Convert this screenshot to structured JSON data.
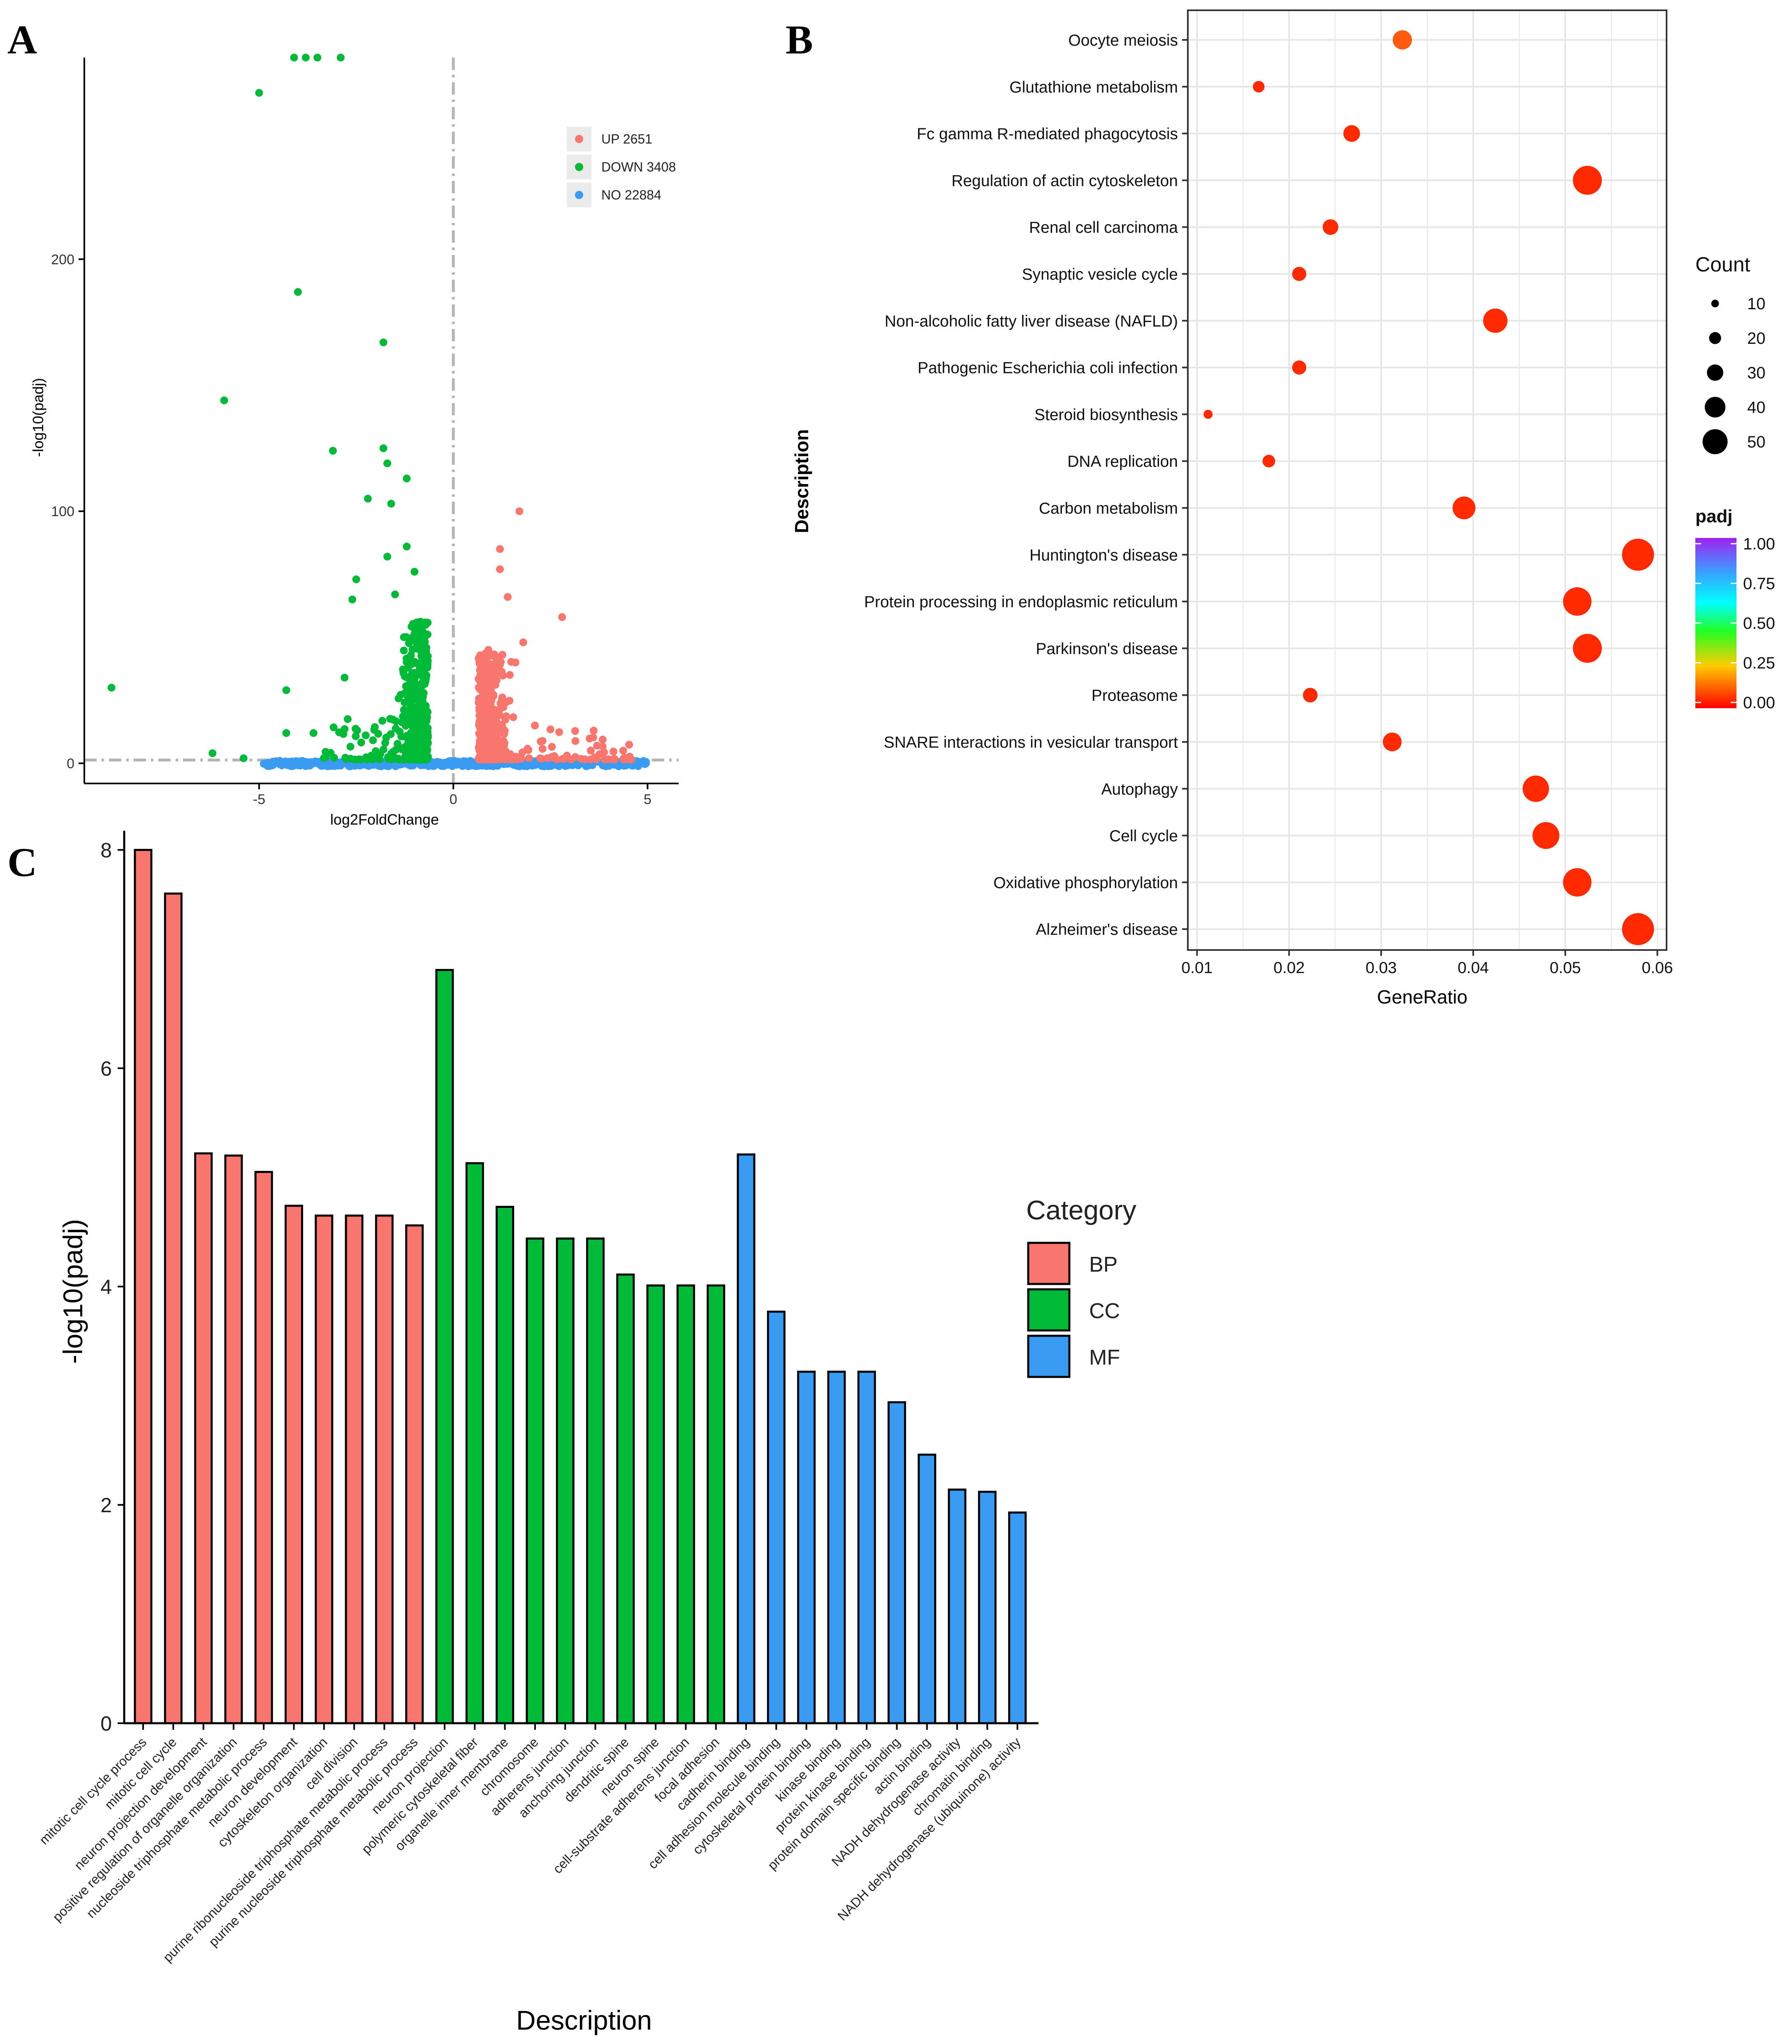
{
  "panels": {
    "a": "A",
    "b": "B",
    "c": "C"
  },
  "colors": {
    "up": "#F8766D",
    "down": "#00BA38",
    "no": "#3A9BF2",
    "bp": "#F8766D",
    "cc": "#00BA38",
    "mf": "#3A9BF2",
    "dot": "#FF2A00",
    "dot_warm": "#FF5A10"
  },
  "chart_data": [
    {
      "type": "scatter",
      "panel": "A",
      "title": "",
      "xlabel": "log2FoldChange",
      "ylabel": "-log10(padj)",
      "xlim": [
        -9.5,
        5.8
      ],
      "ylim": [
        -8,
        280
      ],
      "xticks": [
        "-5",
        "0",
        "5"
      ],
      "yticks": [
        "0",
        "100",
        "200"
      ],
      "thresholds": {
        "x": 0,
        "y": 1.3
      },
      "legend": [
        {
          "key": "up",
          "label": "UP 2651"
        },
        {
          "key": "down",
          "label": "DOWN 3408"
        },
        {
          "key": "no",
          "label": "NO 22884"
        }
      ],
      "series": [
        {
          "name": "DOWN",
          "points": [
            [
              -4.1,
              280
            ],
            [
              -3.8,
              280
            ],
            [
              -3.5,
              280
            ],
            [
              -2.9,
              280
            ],
            [
              -5.0,
              266
            ],
            [
              -4.0,
              187
            ],
            [
              -1.8,
              167
            ],
            [
              -5.9,
              144
            ],
            [
              -3.1,
              124
            ],
            [
              -1.8,
              125
            ],
            [
              -1.2,
              113
            ],
            [
              -1.7,
              119
            ],
            [
              -2.2,
              105
            ],
            [
              -1.6,
              103
            ],
            [
              -1.2,
              86
            ],
            [
              -2.5,
              73
            ],
            [
              -1.7,
              82
            ],
            [
              -2.6,
              65
            ],
            [
              -1.5,
              67
            ],
            [
              -1.0,
              76
            ],
            [
              -4.3,
              29
            ],
            [
              -8.8,
              30
            ],
            [
              -2.8,
              34
            ],
            [
              -4.3,
              12
            ],
            [
              -3.6,
              12
            ],
            [
              -6.2,
              4
            ],
            [
              -5.4,
              2
            ]
          ]
        },
        {
          "name": "UP",
          "points": [
            [
              1.7,
              100
            ],
            [
              1.2,
              85
            ],
            [
              1.2,
              77
            ],
            [
              1.4,
              66
            ],
            [
              2.8,
              58
            ],
            [
              1.8,
              48
            ],
            [
              2.1,
              15
            ],
            [
              3.7,
              7
            ],
            [
              0.9,
              45
            ],
            [
              1.6,
              40
            ]
          ]
        }
      ]
    },
    {
      "type": "bubble",
      "panel": "B",
      "xlabel": "GeneRatio",
      "ylabel": "Description",
      "xlim": [
        0.009,
        0.061
      ],
      "xticks": [
        "0.01",
        "0.02",
        "0.03",
        "0.04",
        "0.05",
        "0.06"
      ],
      "size_legend_title": "Count",
      "size_legend": [
        10,
        20,
        30,
        40,
        50
      ],
      "color_legend_title": "padj",
      "color_legend": [
        "1.00",
        "0.75",
        "0.50",
        "0.25",
        "0.00"
      ],
      "terms": [
        {
          "label": "Oocyte meiosis",
          "ratio": 0.0323,
          "count": 30,
          "padj": 0.12
        },
        {
          "label": "Glutathione metabolism",
          "ratio": 0.0167,
          "count": 15,
          "padj": 0.05
        },
        {
          "label": "Fc gamma R-mediated phagocytosis",
          "ratio": 0.0268,
          "count": 25,
          "padj": 0.05
        },
        {
          "label": "Regulation of actin cytoskeleton",
          "ratio": 0.0524,
          "count": 49,
          "padj": 0.0
        },
        {
          "label": "Renal cell carcinoma",
          "ratio": 0.0245,
          "count": 23,
          "padj": 0.03
        },
        {
          "label": "Synaptic vesicle cycle",
          "ratio": 0.0211,
          "count": 20,
          "padj": 0.01
        },
        {
          "label": "Non-alcoholic fatty liver disease (NAFLD)",
          "ratio": 0.0424,
          "count": 40,
          "padj": 0.0
        },
        {
          "label": "Pathogenic Escherichia coli infection",
          "ratio": 0.0211,
          "count": 20,
          "padj": 0.01
        },
        {
          "label": "Steroid biosynthesis",
          "ratio": 0.0112,
          "count": 10,
          "padj": 0.0
        },
        {
          "label": "DNA replication",
          "ratio": 0.0178,
          "count": 17,
          "padj": 0.01
        },
        {
          "label": "Carbon metabolism",
          "ratio": 0.039,
          "count": 37,
          "padj": 0.0
        },
        {
          "label": "Huntington's disease",
          "ratio": 0.0579,
          "count": 55,
          "padj": 0.0
        },
        {
          "label": "Protein processing in endoplasmic reticulum",
          "ratio": 0.0513,
          "count": 48,
          "padj": 0.0
        },
        {
          "label": "Parkinson's disease",
          "ratio": 0.0524,
          "count": 49,
          "padj": 0.0
        },
        {
          "label": "Proteasome",
          "ratio": 0.0223,
          "count": 21,
          "padj": 0.01
        },
        {
          "label": "SNARE interactions in vesicular transport",
          "ratio": 0.0312,
          "count": 29,
          "padj": 0.0
        },
        {
          "label": "Autophagy",
          "ratio": 0.0468,
          "count": 44,
          "padj": 0.0
        },
        {
          "label": "Cell cycle",
          "ratio": 0.0479,
          "count": 45,
          "padj": 0.0
        },
        {
          "label": "Oxidative phosphorylation",
          "ratio": 0.0513,
          "count": 48,
          "padj": 0.0
        },
        {
          "label": "Alzheimer's disease",
          "ratio": 0.0579,
          "count": 55,
          "padj": 0.0
        }
      ]
    },
    {
      "type": "bar",
      "panel": "C",
      "xlabel": "Description",
      "ylabel": "-log10(padj)",
      "ylim": [
        0,
        8.1
      ],
      "yticks": [
        "0",
        "2",
        "4",
        "6",
        "8"
      ],
      "legend_title": "Category",
      "legend": [
        "BP",
        "CC",
        "MF"
      ],
      "bars": [
        {
          "label": "mitotic cell cycle process",
          "value": 8.0,
          "category": "BP"
        },
        {
          "label": "mitotic cell cycle",
          "value": 7.6,
          "category": "BP"
        },
        {
          "label": "neuron projection development",
          "value": 5.22,
          "category": "BP"
        },
        {
          "label": "positive regulation of organelle organization",
          "value": 5.2,
          "category": "BP"
        },
        {
          "label": "nucleoside triphosphate metabolic process",
          "value": 5.05,
          "category": "BP"
        },
        {
          "label": "neuron development",
          "value": 4.74,
          "category": "BP"
        },
        {
          "label": "cytoskeleton organization",
          "value": 4.65,
          "category": "BP"
        },
        {
          "label": "cell division",
          "value": 4.65,
          "category": "BP"
        },
        {
          "label": "purine ribonucleoside triphosphate metabolic process",
          "value": 4.65,
          "category": "BP"
        },
        {
          "label": "purine nucleoside triphosphate metabolic process",
          "value": 4.56,
          "category": "BP"
        },
        {
          "label": "neuron projection",
          "value": 6.9,
          "category": "CC"
        },
        {
          "label": "polymeric cytoskeletal fiber",
          "value": 5.13,
          "category": "CC"
        },
        {
          "label": "organelle inner membrane",
          "value": 4.73,
          "category": "CC"
        },
        {
          "label": "chromosome",
          "value": 4.44,
          "category": "CC"
        },
        {
          "label": "adherens junction",
          "value": 4.44,
          "category": "CC"
        },
        {
          "label": "anchoring junction",
          "value": 4.44,
          "category": "CC"
        },
        {
          "label": "dendritic spine",
          "value": 4.11,
          "category": "CC"
        },
        {
          "label": "neuron spine",
          "value": 4.01,
          "category": "CC"
        },
        {
          "label": "cell-substrate adherens junction",
          "value": 4.01,
          "category": "CC"
        },
        {
          "label": "focal adhesion",
          "value": 4.01,
          "category": "CC"
        },
        {
          "label": "cadherin binding",
          "value": 5.21,
          "category": "MF"
        },
        {
          "label": "cell adhesion molecule binding",
          "value": 3.77,
          "category": "MF"
        },
        {
          "label": "cytoskeletal protein binding",
          "value": 3.22,
          "category": "MF"
        },
        {
          "label": "kinase binding",
          "value": 3.22,
          "category": "MF"
        },
        {
          "label": "protein kinase binding",
          "value": 3.22,
          "category": "MF"
        },
        {
          "label": "protein domain specific binding",
          "value": 2.94,
          "category": "MF"
        },
        {
          "label": "actin binding",
          "value": 2.46,
          "category": "MF"
        },
        {
          "label": "NADH dehydrogenase activity",
          "value": 2.14,
          "category": "MF"
        },
        {
          "label": "chromatin binding",
          "value": 2.12,
          "category": "MF"
        },
        {
          "label": "NADH dehydrogenase (ubiquinone) activity",
          "value": 1.93,
          "category": "MF"
        }
      ]
    }
  ]
}
